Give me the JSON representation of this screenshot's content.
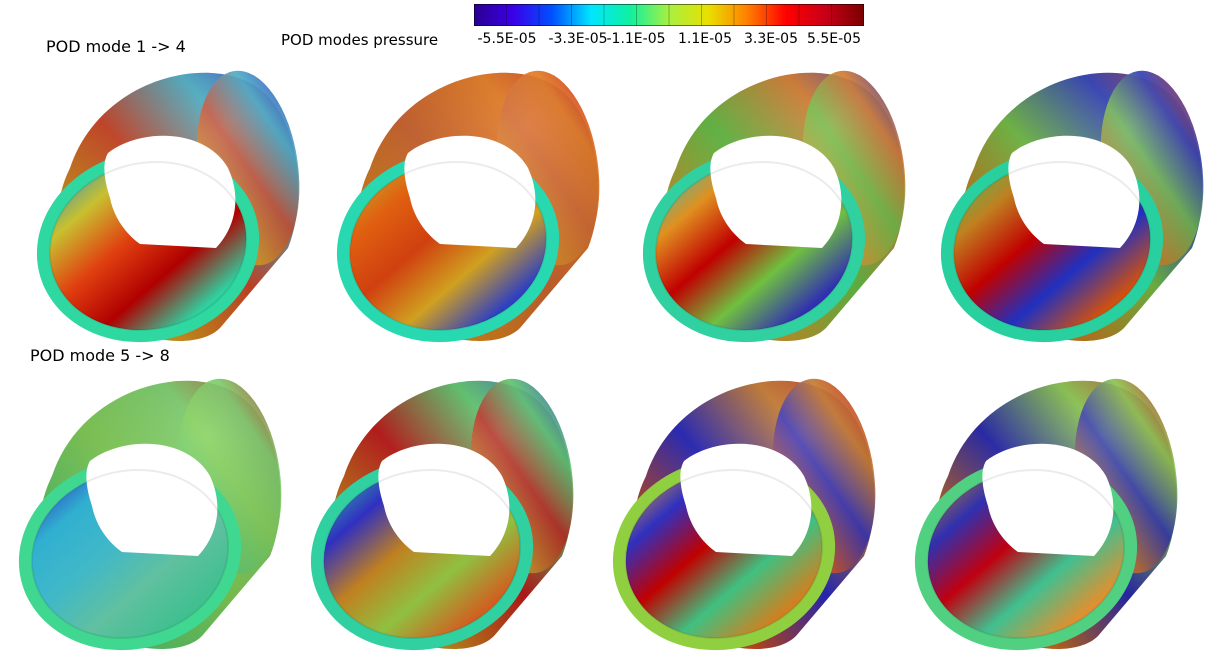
{
  "figure": {
    "row_titles": [
      "POD mode 1 -> 4",
      "POD mode 5 -> 8"
    ],
    "colorbar": {
      "title": "POD modes pressure",
      "tick_labels": [
        "-5.5E-05",
        "-3.3E-05",
        "-1.1E-05",
        "1.1E-05",
        "3.3E-05",
        "5.5E-05"
      ],
      "range": [
        -6.6e-05,
        6.6e-05
      ],
      "colormap": [
        "#2a0090",
        "#3a00e8",
        "#0050ff",
        "#00e6ff",
        "#10f0a0",
        "#a8f040",
        "#e8e000",
        "#ff8000",
        "#ff0000",
        "#c80018",
        "#7a0000"
      ]
    },
    "modes": [
      {
        "mode": 1,
        "palette": {
          "outer": [
            "#30c890",
            "#e0a020",
            "#d04020",
            "#3fa8c0",
            "#2020c0"
          ],
          "inner": [
            "#1d8fd0",
            "#c8c030",
            "#e04010",
            "#b00000",
            "#30d0a0"
          ],
          "rim": "#2ed8a0"
        }
      },
      {
        "mode": 2,
        "palette": {
          "outer": [
            "#2ac0c8",
            "#e08a20",
            "#d06028",
            "#e07010",
            "#c01010"
          ],
          "inner": [
            "#c0b030",
            "#e06010",
            "#d04010",
            "#d0a020",
            "#3040c0"
          ],
          "rim": "#28d8b0"
        }
      },
      {
        "mode": 3,
        "palette": {
          "outer": [
            "#30d0a0",
            "#d0a030",
            "#60c040",
            "#d07020",
            "#2020a0"
          ],
          "inner": [
            "#30c0c0",
            "#e09020",
            "#c00000",
            "#70c040",
            "#3030b0"
          ],
          "rim": "#30d0a0"
        }
      },
      {
        "mode": 4,
        "palette": {
          "outer": [
            "#40c8a0",
            "#d08020",
            "#70c040",
            "#2030b0",
            "#c02010"
          ],
          "inner": [
            "#40c060",
            "#c08020",
            "#c00000",
            "#2030c0",
            "#d05010"
          ],
          "rim": "#28d0a0"
        }
      },
      {
        "mode": 5,
        "palette": {
          "outer": [
            "#40c8a0",
            "#60d070",
            "#80d050",
            "#70c860",
            "#b03010"
          ],
          "inner": [
            "#3030c0",
            "#30b0d0",
            "#40b8c8",
            "#60c0a0",
            "#40c090"
          ],
          "rim": "#40d890"
        }
      },
      {
        "mode": 6,
        "palette": {
          "outer": [
            "#40c8a0",
            "#d09020",
            "#c01010",
            "#50c060",
            "#2040c0"
          ],
          "inner": [
            "#30c0a0",
            "#3030c0",
            "#c08020",
            "#90c040",
            "#d06020"
          ],
          "rim": "#30d0a0"
        }
      },
      {
        "mode": 7,
        "palette": {
          "outer": [
            "#40c890",
            "#d05020",
            "#2020c0",
            "#c07020",
            "#c01010"
          ],
          "inner": [
            "#e0a030",
            "#3030c0",
            "#c00000",
            "#40c080",
            "#d08020"
          ],
          "rim": "#90d040"
        }
      },
      {
        "mode": 8,
        "palette": {
          "outer": [
            "#40c890",
            "#d07020",
            "#2020b0",
            "#80c040",
            "#c01010"
          ],
          "inner": [
            "#c08020",
            "#3030b0",
            "#c00010",
            "#40c090",
            "#e09030"
          ],
          "rim": "#50d080"
        }
      }
    ]
  }
}
